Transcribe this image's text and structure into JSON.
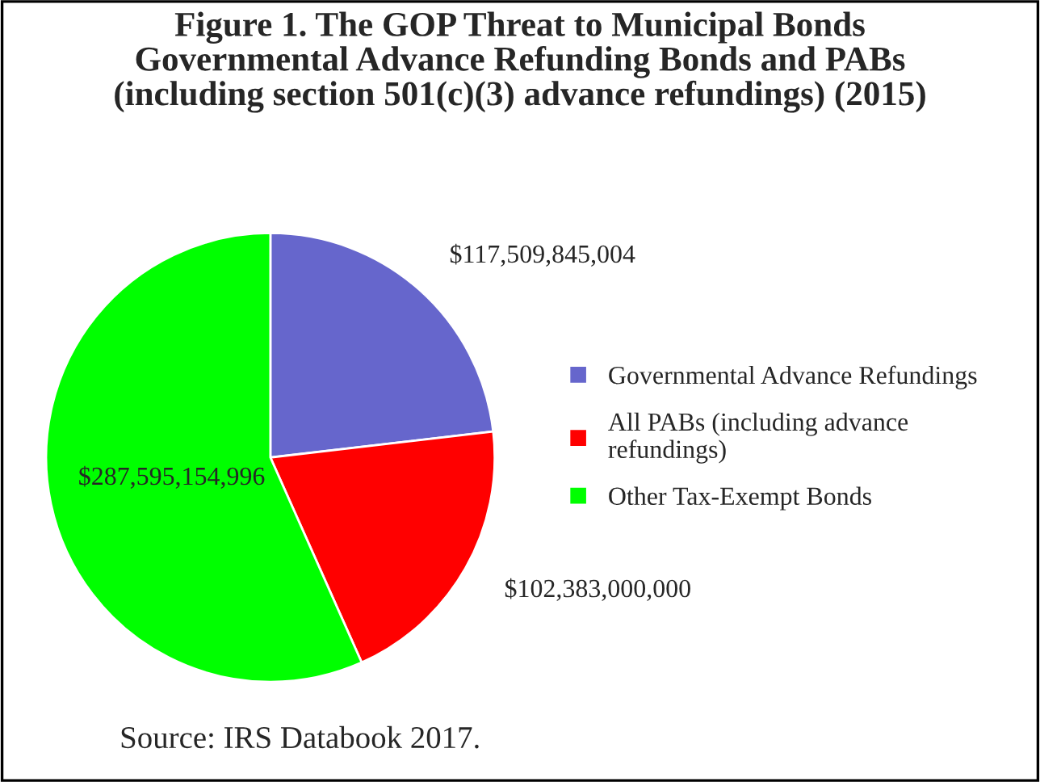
{
  "chart_data": {
    "type": "pie",
    "title": "Figure 1. The GOP Threat to Municipal Bonds\nGovernmental Advance Refunding Bonds and PABs\n(including section 501(c)(3) advance refundings) (2015)",
    "categories": [
      "Governmental Advance Refundings",
      "All PABs (including advance\nrefundings)",
      "Other Tax-Exempt Bonds"
    ],
    "values": [
      117509845004,
      102383000000,
      287595154996
    ],
    "value_labels": [
      "$117,509,845,004",
      "$102,383,000,000",
      "$287,595,154,996"
    ],
    "colors": [
      "#6666cc",
      "#ff0000",
      "#00ff00"
    ],
    "legend": "right",
    "annotations": [
      "Source: IRS Databook 2017."
    ]
  }
}
